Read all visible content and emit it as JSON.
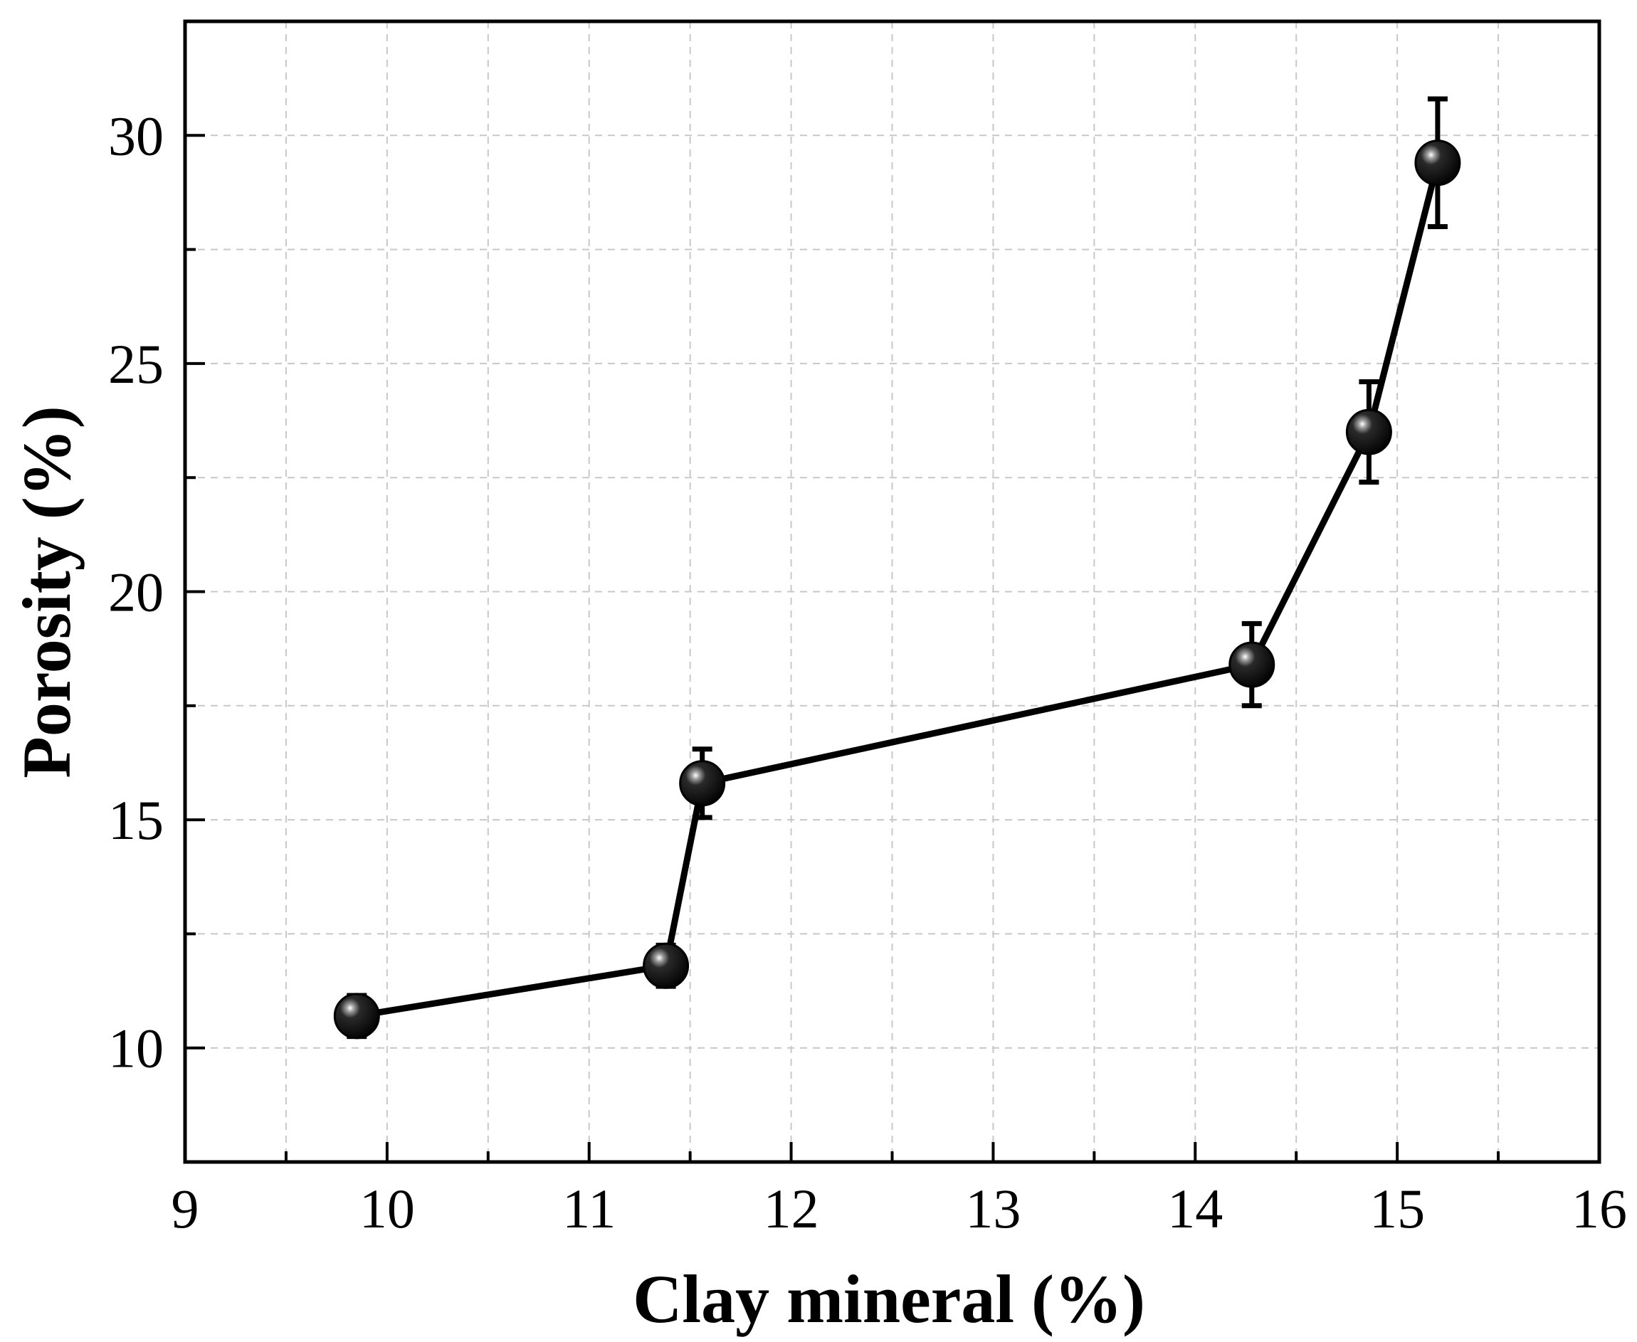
{
  "chart_data": {
    "type": "line",
    "title": "",
    "xlabel": "Clay mineral (%)",
    "ylabel": "Porosity (%)",
    "xlim": [
      9,
      16
    ],
    "ylim": [
      7.5,
      32.5
    ],
    "x_ticks_major": [
      9,
      10,
      11,
      12,
      13,
      14,
      15,
      16
    ],
    "x_tick_labels": [
      "9",
      "10",
      "11",
      "12",
      "13",
      "14",
      "15",
      "16"
    ],
    "x_ticks_minor": [
      9.5,
      10.5,
      11.5,
      12.5,
      13.5,
      14.5,
      15.5
    ],
    "y_ticks_major": [
      10,
      15,
      20,
      25,
      30
    ],
    "y_tick_labels": [
      "10",
      "15",
      "20",
      "25",
      "30"
    ],
    "y_ticks_minor": [
      12.5,
      17.5,
      22.5,
      27.5
    ],
    "grid": true,
    "legend": false,
    "series": [
      {
        "name": "Porosity",
        "color": "#000000",
        "marker": "circle",
        "x": [
          9.85,
          11.38,
          11.56,
          14.28,
          14.86,
          15.2
        ],
        "y": [
          10.7,
          11.8,
          15.8,
          18.4,
          23.5,
          29.4
        ],
        "error": [
          0.45,
          0.45,
          0.75,
          0.9,
          1.1,
          1.4
        ]
      }
    ]
  }
}
